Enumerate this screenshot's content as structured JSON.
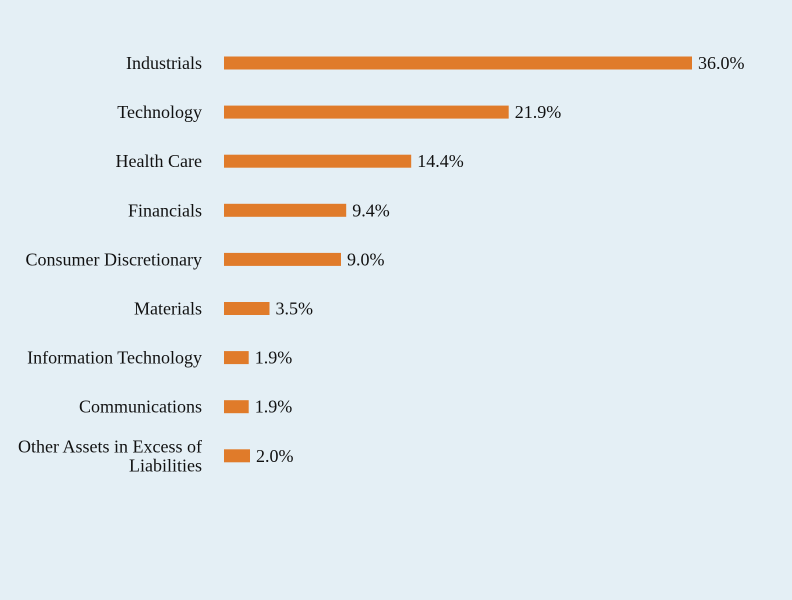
{
  "chart_data": {
    "type": "bar",
    "orientation": "horizontal",
    "categories": [
      "Industrials",
      "Technology",
      "Health Care",
      "Financials",
      "Consumer Discretionary",
      "Materials",
      "Information Technology",
      "Communications",
      "Other Assets in Excess of Liabilities"
    ],
    "values": [
      36.0,
      21.9,
      14.4,
      9.4,
      9.0,
      3.5,
      1.9,
      1.9,
      2.0
    ],
    "value_labels": [
      "36.0%",
      "21.9%",
      "14.4%",
      "9.4%",
      "9.0%",
      "3.5%",
      "1.9%",
      "1.9%",
      "2.0%"
    ],
    "unit": "%",
    "xlim": [
      0,
      36.0
    ],
    "grid": false,
    "legend": "none",
    "colors": {
      "bar": "#e07b2a",
      "background": "#e4eff5",
      "text": "#111111"
    }
  }
}
